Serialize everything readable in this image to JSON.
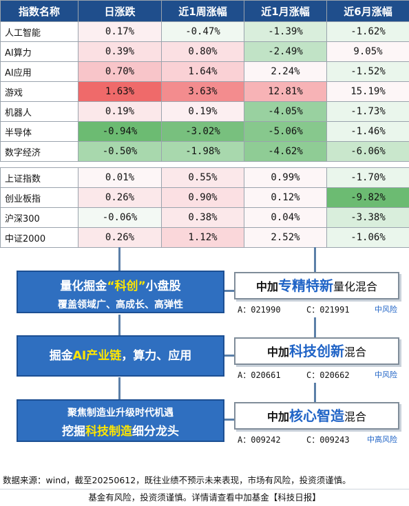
{
  "table": {
    "headers": [
      "指数名称",
      "日涨跌",
      "近1周涨幅",
      "近1月涨幅",
      "近6月涨幅"
    ],
    "group1": [
      {
        "name": "人工智能",
        "cells": [
          "0.17%",
          "-0.47%",
          "-1.39%",
          "-1.62%"
        ],
        "bg": [
          "#fceff1",
          "#f0f8f1",
          "#d9eedc",
          "#eaf6ec"
        ]
      },
      {
        "name": "AI算力",
        "cells": [
          "0.39%",
          "0.80%",
          "-2.49%",
          "9.05%"
        ],
        "bg": [
          "#fbe0e3",
          "#fbe0e3",
          "#c1e3c6",
          "#fdf6f7"
        ]
      },
      {
        "name": "AI应用",
        "cells": [
          "0.70%",
          "1.64%",
          "2.24%",
          "-1.52%"
        ],
        "bg": [
          "#f8c5c9",
          "#fad1d5",
          "#fdf6f7",
          "#eaf6ec"
        ]
      },
      {
        "name": "游戏",
        "cells": [
          "1.63%",
          "3.63%",
          "12.81%",
          "15.19%"
        ],
        "bg": [
          "#ef6a6a",
          "#f38c8e",
          "#f7b3b6",
          "#fdf6f7"
        ]
      },
      {
        "name": "机器人",
        "cells": [
          "0.19%",
          "0.19%",
          "-4.05%",
          "-1.73%"
        ],
        "bg": [
          "#fbe8ea",
          "#fceff1",
          "#99d1a0",
          "#eaf6ec"
        ]
      },
      {
        "name": "半导体",
        "cells": [
          "-0.94%",
          "-3.02%",
          "-5.06%",
          "-1.46%"
        ],
        "bg": [
          "#6cbb72",
          "#78c07e",
          "#87c88d",
          "#eaf6ec"
        ]
      },
      {
        "name": "数字经济",
        "cells": [
          "-0.50%",
          "-1.98%",
          "-4.62%",
          "-6.06%"
        ],
        "bg": [
          "#a8d8ad",
          "#a8d8ad",
          "#8fcc95",
          "#c9e7cc"
        ]
      }
    ],
    "group2": [
      {
        "name": "上证指数",
        "cells": [
          "0.01%",
          "0.55%",
          "0.99%",
          "-1.70%"
        ],
        "bg": [
          "#fdf6f7",
          "#fbe8ea",
          "#fdf6f7",
          "#eaf6ec"
        ]
      },
      {
        "name": "创业板指",
        "cells": [
          "0.26%",
          "0.90%",
          "0.12%",
          "-9.82%"
        ],
        "bg": [
          "#fbe8ea",
          "#fbe0e3",
          "#fdf6f7",
          "#6cbb72"
        ]
      },
      {
        "name": "沪深300",
        "cells": [
          "-0.06%",
          "0.38%",
          "0.04%",
          "-3.38%"
        ],
        "bg": [
          "#f3f9f4",
          "#fbe8ea",
          "#fdf6f7",
          "#d9eedc"
        ]
      },
      {
        "name": "中证2000",
        "cells": [
          "0.26%",
          "1.12%",
          "2.52%",
          "-1.06%"
        ],
        "bg": [
          "#fbe8ea",
          "#fad7da",
          "#fdf6f7",
          "#eaf6ec"
        ]
      }
    ]
  },
  "highlights": {
    "box1": {
      "line1_pre": "量化掘金",
      "line1_quote": "“科创”",
      "line1_post": "小盘股",
      "line2": "覆盖领域广、高成长、高弹性"
    },
    "box2": {
      "pre": "掘金",
      "hl": "AI产业链",
      "post": "，算力、应用"
    },
    "box3": {
      "line1": "聚焦制造业升级时代机遇",
      "line2_pre": "挖掘",
      "line2_hl": "科技制造",
      "line2_post": "细分龙头"
    }
  },
  "funds": [
    {
      "prefix": "中加",
      "hl": "专精特新",
      "tail": "量化混合",
      "a": "A：021990",
      "c": "C：021991",
      "risk": "中风险"
    },
    {
      "prefix": "中加",
      "hl": "科技创新",
      "tail": "混合",
      "a": "A：020661",
      "c": "C：020662",
      "risk": "中风险"
    },
    {
      "prefix": "中加",
      "hl": "核心智造",
      "tail": "混合",
      "a": "A：009242",
      "c": "C：009243",
      "risk": "中高风险"
    }
  ],
  "footer": {
    "line1": "数据来源：wind，截至20250612，既往业绩不预示未来表现，市场有风险，投资须谨慎。",
    "line2": "基金有风险，投资须谨慎。详情请查看中加基金【科技日报】"
  },
  "colors": {
    "header_bg": "#1f4e8c",
    "box_blue": "#2f6fc0",
    "highlight_yellow": "#ffe600",
    "fund_blue": "#1f63c6"
  }
}
